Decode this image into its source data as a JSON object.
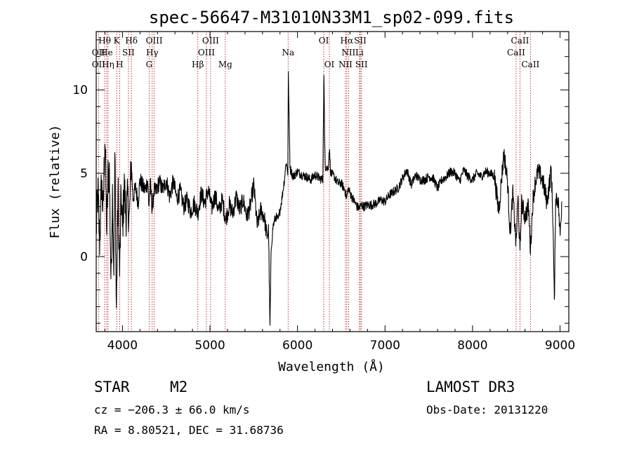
{
  "chart_data": {
    "type": "line",
    "title": "spec-56647-M31010N33M1_sp02-099.fits",
    "xlabel": "Wavelength (Å)",
    "ylabel": "Flux (relative)",
    "xlim": [
      3700,
      9100
    ],
    "ylim": [
      -4.5,
      13.5
    ],
    "xticks": [
      4000,
      5000,
      6000,
      7000,
      8000,
      9000
    ],
    "xtick_labels": [
      "4000",
      "5000",
      "6000",
      "7000",
      "8000",
      "9000"
    ],
    "yticks": [
      0,
      5,
      10
    ],
    "ytick_labels": [
      "0",
      "5",
      "10"
    ],
    "spectrum_color": "#000000",
    "line_marker_color": "#b22222",
    "spectrum_anchors": [
      [
        3700,
        1.6
      ],
      [
        3720,
        3.8
      ],
      [
        3740,
        0.8
      ],
      [
        3760,
        4.5
      ],
      [
        3780,
        2.6
      ],
      [
        3800,
        7.5
      ],
      [
        3820,
        1.5
      ],
      [
        3835,
        4.8
      ],
      [
        3850,
        5.1
      ],
      [
        3870,
        -1.8
      ],
      [
        3885,
        4.2
      ],
      [
        3900,
        -0.8
      ],
      [
        3915,
        6.2
      ],
      [
        3930,
        -3.5
      ],
      [
        3950,
        4.2
      ],
      [
        3968,
        -1.2
      ],
      [
        3985,
        3.8
      ],
      [
        4000,
        1.6
      ],
      [
        4020,
        4.2
      ],
      [
        4040,
        2.5
      ],
      [
        4060,
        3.4
      ],
      [
        4080,
        2.2
      ],
      [
        4100,
        5.8
      ],
      [
        4120,
        3.5
      ],
      [
        4150,
        4.1
      ],
      [
        4180,
        3.3
      ],
      [
        4200,
        4.6
      ],
      [
        4230,
        4.2
      ],
      [
        4260,
        4.0
      ],
      [
        4290,
        4.6
      ],
      [
        4300,
        3.0
      ],
      [
        4320,
        4.3
      ],
      [
        4340,
        2.8
      ],
      [
        4360,
        4.0
      ],
      [
        4380,
        3.8
      ],
      [
        4420,
        4.5
      ],
      [
        4460,
        4.0
      ],
      [
        4500,
        4.6
      ],
      [
        4540,
        3.6
      ],
      [
        4580,
        4.5
      ],
      [
        4620,
        3.5
      ],
      [
        4660,
        3.9
      ],
      [
        4700,
        3.0
      ],
      [
        4740,
        3.4
      ],
      [
        4780,
        2.7
      ],
      [
        4820,
        3.2
      ],
      [
        4860,
        2.6
      ],
      [
        4900,
        3.8
      ],
      [
        4940,
        3.2
      ],
      [
        4980,
        4.0
      ],
      [
        5020,
        2.9
      ],
      [
        5060,
        3.7
      ],
      [
        5100,
        2.7
      ],
      [
        5140,
        3.4
      ],
      [
        5180,
        2.2
      ],
      [
        5220,
        3.1
      ],
      [
        5260,
        2.6
      ],
      [
        5300,
        3.6
      ],
      [
        5340,
        2.8
      ],
      [
        5380,
        3.4
      ],
      [
        5420,
        2.4
      ],
      [
        5460,
        3.0
      ],
      [
        5500,
        4.3
      ],
      [
        5540,
        1.8
      ],
      [
        5580,
        2.8
      ],
      [
        5620,
        2.4
      ],
      [
        5650,
        1.2
      ],
      [
        5670,
        1.6
      ],
      [
        5685,
        -4.5
      ],
      [
        5700,
        0.5
      ],
      [
        5720,
        1.8
      ],
      [
        5750,
        2.4
      ],
      [
        5780,
        2.2
      ],
      [
        5820,
        3.4
      ],
      [
        5850,
        4.6
      ],
      [
        5870,
        5.7
      ],
      [
        5890,
        5.0
      ],
      [
        5895,
        11.2
      ],
      [
        5905,
        8.0
      ],
      [
        5915,
        5.3
      ],
      [
        5950,
        4.8
      ],
      [
        6000,
        5.1
      ],
      [
        6050,
        4.9
      ],
      [
        6100,
        4.8
      ],
      [
        6150,
        4.6
      ],
      [
        6200,
        4.9
      ],
      [
        6250,
        4.7
      ],
      [
        6290,
        4.6
      ],
      [
        6302,
        11.3
      ],
      [
        6310,
        7.0
      ],
      [
        6320,
        5.3
      ],
      [
        6330,
        5.4
      ],
      [
        6350,
        5.2
      ],
      [
        6364,
        6.5
      ],
      [
        6380,
        5.0
      ],
      [
        6420,
        4.8
      ],
      [
        6460,
        4.4
      ],
      [
        6500,
        4.4
      ],
      [
        6540,
        4.0
      ],
      [
        6563,
        3.5
      ],
      [
        6580,
        4.1
      ],
      [
        6600,
        3.8
      ],
      [
        6640,
        3.4
      ],
      [
        6680,
        3.0
      ],
      [
        6708,
        2.9
      ],
      [
        6730,
        3.1
      ],
      [
        6760,
        3.0
      ],
      [
        6800,
        3.1
      ],
      [
        6850,
        3.1
      ],
      [
        6900,
        3.2
      ],
      [
        6950,
        3.4
      ],
      [
        7000,
        3.3
      ],
      [
        7050,
        3.7
      ],
      [
        7100,
        3.9
      ],
      [
        7150,
        4.1
      ],
      [
        7200,
        4.7
      ],
      [
        7250,
        5.2
      ],
      [
        7300,
        4.3
      ],
      [
        7350,
        4.9
      ],
      [
        7400,
        4.6
      ],
      [
        7450,
        4.6
      ],
      [
        7500,
        4.8
      ],
      [
        7550,
        4.7
      ],
      [
        7600,
        4.1
      ],
      [
        7650,
        4.6
      ],
      [
        7700,
        4.8
      ],
      [
        7750,
        5.1
      ],
      [
        7800,
        5.0
      ],
      [
        7850,
        4.5
      ],
      [
        7900,
        5.2
      ],
      [
        7950,
        4.8
      ],
      [
        8000,
        4.6
      ],
      [
        8050,
        5.0
      ],
      [
        8100,
        4.8
      ],
      [
        8150,
        5.1
      ],
      [
        8200,
        5.0
      ],
      [
        8250,
        4.8
      ],
      [
        8300,
        2.7
      ],
      [
        8330,
        4.6
      ],
      [
        8360,
        6.2
      ],
      [
        8400,
        4.5
      ],
      [
        8430,
        1.4
      ],
      [
        8460,
        3.8
      ],
      [
        8498,
        0.7
      ],
      [
        8520,
        3.6
      ],
      [
        8542,
        0.1
      ],
      [
        8560,
        3.2
      ],
      [
        8600,
        2.4
      ],
      [
        8640,
        3.0
      ],
      [
        8662,
        0.4
      ],
      [
        8690,
        3.4
      ],
      [
        8720,
        4.6
      ],
      [
        8750,
        5.1
      ],
      [
        8800,
        4.6
      ],
      [
        8850,
        3.3
      ],
      [
        8900,
        5.2
      ],
      [
        8920,
        2.0
      ],
      [
        8935,
        -3.0
      ],
      [
        8950,
        3.6
      ],
      [
        8980,
        3.4
      ],
      [
        9000,
        1.2
      ],
      [
        9020,
        3.4
      ]
    ],
    "line_markers": [
      {
        "label": "Hθ",
        "wavelength": 3797,
        "row": 0
      },
      {
        "label": "OII",
        "wavelength": 3727,
        "row": 1
      },
      {
        "label": "OII",
        "wavelength": 3727,
        "row": 2
      },
      {
        "label": "He",
        "wavelength": 3820,
        "row": 1
      },
      {
        "label": "Hη",
        "wavelength": 3835,
        "row": 2
      },
      {
        "label": "K",
        "wavelength": 3934,
        "row": 0
      },
      {
        "label": "SII",
        "wavelength": 4068,
        "row": 1
      },
      {
        "label": "H",
        "wavelength": 3968,
        "row": 2
      },
      {
        "label": "Hδ",
        "wavelength": 4102,
        "row": 0
      },
      {
        "label": "OIII",
        "wavelength": 4363,
        "row": 0
      },
      {
        "label": "Hγ",
        "wavelength": 4340,
        "row": 1
      },
      {
        "label": "G",
        "wavelength": 4305,
        "row": 2
      },
      {
        "label": "Hβ",
        "wavelength": 4861,
        "row": 2
      },
      {
        "label": "OIII",
        "wavelength": 5007,
        "row": 0
      },
      {
        "label": "OIII",
        "wavelength": 4959,
        "row": 1
      },
      {
        "label": "Mg",
        "wavelength": 5175,
        "row": 2
      },
      {
        "label": "Na",
        "wavelength": 5893,
        "row": 1
      },
      {
        "label": "OI",
        "wavelength": 6300,
        "row": 0
      },
      {
        "label": "OI",
        "wavelength": 6364,
        "row": 2
      },
      {
        "label": "Hα",
        "wavelength": 6563,
        "row": 0
      },
      {
        "label": "NII",
        "wavelength": 6583,
        "row": 1
      },
      {
        "label": "NII",
        "wavelength": 6548,
        "row": 2
      },
      {
        "label": "SII",
        "wavelength": 6717,
        "row": 0
      },
      {
        "label": "Li",
        "wavelength": 6708,
        "row": 1
      },
      {
        "label": "SII",
        "wavelength": 6731,
        "row": 2
      },
      {
        "label": "CaII",
        "wavelength": 8542,
        "row": 0
      },
      {
        "label": "CaII",
        "wavelength": 8498,
        "row": 1
      },
      {
        "label": "CaII",
        "wavelength": 8662,
        "row": 2
      }
    ]
  },
  "info": {
    "object_class": "STAR",
    "subclass": "M2",
    "velocity": "cz = −206.3 ± 66.0 km/s",
    "coordinates": "RA =   8.80521, DEC =  31.68736",
    "survey": "LAMOST DR3",
    "obs_date": "Obs-Date: 20131220"
  }
}
